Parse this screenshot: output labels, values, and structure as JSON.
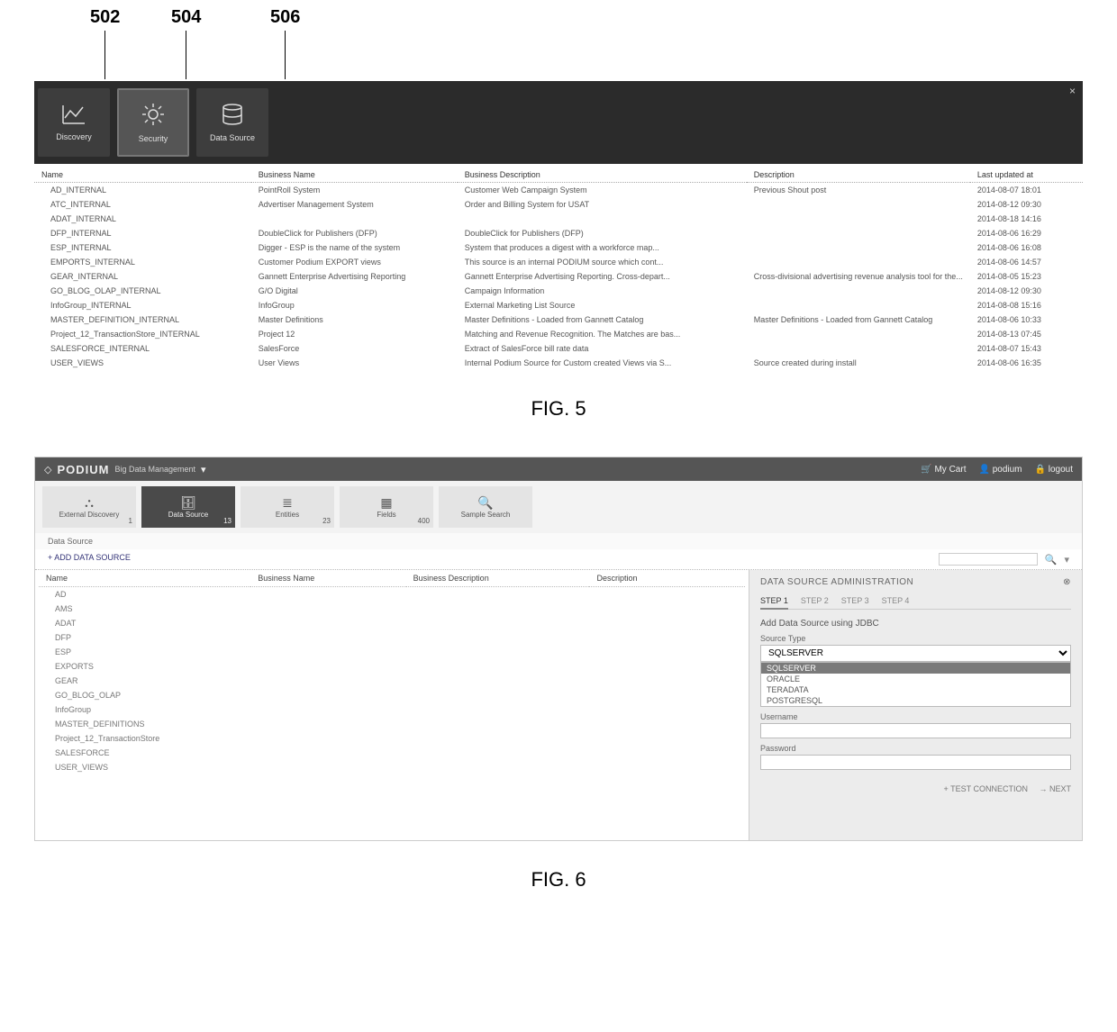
{
  "callouts": {
    "a": "502",
    "b": "504",
    "c": "506"
  },
  "fig5": {
    "tiles": {
      "discovery": "Discovery",
      "security": "Security",
      "datasource": "Data Source"
    },
    "columns": [
      "Name",
      "Business Name",
      "Business Description",
      "Description",
      "Last updated at"
    ],
    "rows": [
      [
        "AD_INTERNAL",
        "PointRoll System",
        "Customer Web Campaign System",
        "Previous Shout post",
        "2014-08-07 18:01"
      ],
      [
        "ATC_INTERNAL",
        "Advertiser Management System",
        "Order and Billing System for USAT",
        "",
        "2014-08-12 09:30"
      ],
      [
        "ADAT_INTERNAL",
        "",
        "",
        "",
        "2014-08-18 14:16"
      ],
      [
        "DFP_INTERNAL",
        "DoubleClick for Publishers (DFP)",
        "DoubleClick for Publishers (DFP)",
        "",
        "2014-08-06 16:29"
      ],
      [
        "ESP_INTERNAL",
        "Digger - ESP is the name of the system",
        "System that produces a digest with a workforce map...",
        "",
        "2014-08-06 16:08"
      ],
      [
        "EMPORTS_INTERNAL",
        "Customer Podium EXPORT views",
        "This source is an internal PODIUM source which cont...",
        "",
        "2014-08-06 14:57"
      ],
      [
        "GEAR_INTERNAL",
        "Gannett Enterprise Advertising Reporting",
        "Gannett Enterprise Advertising Reporting. Cross-depart...",
        "Cross-divisional advertising revenue analysis tool for the...",
        "2014-08-05 15:23"
      ],
      [
        "GO_BLOG_OLAP_INTERNAL",
        "G/O Digital",
        "Campaign Information",
        "",
        "2014-08-12 09:30"
      ],
      [
        "InfoGroup_INTERNAL",
        "InfoGroup",
        "External Marketing List Source",
        "",
        "2014-08-08 15:16"
      ],
      [
        "MASTER_DEFINITION_INTERNAL",
        "Master Definitions",
        "Master Definitions - Loaded from Gannett Catalog",
        "Master Definitions - Loaded from Gannett Catalog",
        "2014-08-06 10:33"
      ],
      [
        "Project_12_TransactionStore_INTERNAL",
        "Project 12",
        "Matching and Revenue Recognition. The Matches are bas...",
        "",
        "2014-08-13 07:45"
      ],
      [
        "SALESFORCE_INTERNAL",
        "SalesForce",
        "Extract of SalesForce bill rate data",
        "",
        "2014-08-07 15:43"
      ],
      [
        "USER_VIEWS",
        "User Views",
        "Internal Podium Source for Custom created Views via S...",
        "Source created during install",
        "2014-08-06 16:35"
      ]
    ],
    "caption": "FIG. 5"
  },
  "fig6": {
    "brand": "PODIUM",
    "brand_sub": "Big Data Management",
    "header_links": {
      "cart": "My Cart",
      "user": "podium",
      "logout": "logout"
    },
    "tiles": [
      {
        "label": "External Discovery",
        "count": "1"
      },
      {
        "label": "Data Source",
        "count": "13",
        "active": true
      },
      {
        "label": "Entities",
        "count": "23"
      },
      {
        "label": "Fields",
        "count": "400"
      },
      {
        "label": "Sample Search",
        "count": ""
      }
    ],
    "crumb": "Data Source",
    "add_label": "+ ADD DATA SOURCE",
    "columns": [
      "Name",
      "Business Name",
      "Business Description",
      "Description"
    ],
    "rows": [
      "AD",
      "AMS",
      "ADAT",
      "DFP",
      "ESP",
      "EXPORTS",
      "GEAR",
      "GO_BLOG_OLAP",
      "InfoGroup",
      "MASTER_DEFINITIONS",
      "Project_12_TransactionStore",
      "SALESFORCE",
      "USER_VIEWS"
    ],
    "panel": {
      "title": "DATA SOURCE ADMINISTRATION",
      "steps": [
        "STEP 1",
        "STEP 2",
        "STEP 3",
        "STEP 4"
      ],
      "subtitle": "Add Data Source using JDBC",
      "source_type_label": "Source Type",
      "selected": "SQLSERVER",
      "options": [
        "SQLSERVER",
        "ORACLE",
        "TERADATA",
        "POSTGRESQL"
      ],
      "username_label": "Username",
      "password_label": "Password",
      "test_btn": "+ TEST CONNECTION",
      "next_btn": "→ NEXT"
    },
    "caption": "FIG. 6"
  }
}
